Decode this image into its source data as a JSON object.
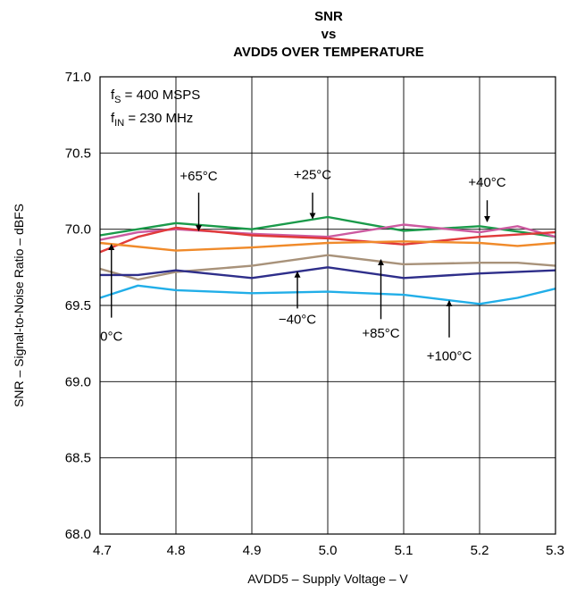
{
  "chart_data": {
    "type": "line",
    "title": [
      "SNR",
      "vs",
      "AVDD5 OVER TEMPERATURE"
    ],
    "xlabel": "AVDD5 – Supply Voltage – V",
    "ylabel": "SNR – Signal-to-Noise Ratio – dBFS",
    "xlim": [
      4.7,
      5.3
    ],
    "ylim": [
      68.0,
      71.0
    ],
    "xticks": [
      "4.7",
      "4.8",
      "4.9",
      "5.0",
      "5.1",
      "5.2",
      "5.3"
    ],
    "yticks": [
      "68.0",
      "68.5",
      "69.0",
      "69.5",
      "70.0",
      "70.5",
      "71.0"
    ],
    "grid": true,
    "conditions": {
      "fs": {
        "sym": "f",
        "sub": "S",
        "text": " = 400 MSPS"
      },
      "fin": {
        "sym": "f",
        "sub": "IN",
        "text": " = 230 MHz"
      }
    },
    "series": [
      {
        "name": "+25°C",
        "color": "#1a9a4a",
        "x": [
          4.7,
          4.8,
          4.9,
          5.0,
          5.1,
          5.2,
          5.3
        ],
        "y": [
          69.96,
          70.04,
          70.0,
          70.08,
          69.99,
          70.02,
          69.95
        ]
      },
      {
        "name": "+40°C",
        "color": "#cc5aa0",
        "x": [
          4.7,
          4.75,
          4.8,
          4.9,
          5.0,
          5.1,
          5.2,
          5.25,
          5.3
        ],
        "y": [
          69.93,
          69.98,
          70.0,
          69.97,
          69.95,
          70.03,
          69.98,
          70.02,
          69.95
        ]
      },
      {
        "name": "+65°C",
        "color": "#e03a3a",
        "x": [
          4.7,
          4.75,
          4.8,
          4.9,
          5.0,
          5.1,
          5.2,
          5.3
        ],
        "y": [
          69.85,
          69.95,
          70.01,
          69.96,
          69.94,
          69.9,
          69.95,
          69.98
        ]
      },
      {
        "name": "0°C",
        "color": "#f08a2a",
        "x": [
          4.7,
          4.8,
          4.9,
          5.0,
          5.1,
          5.2,
          5.25,
          5.3
        ],
        "y": [
          69.91,
          69.86,
          69.88,
          69.91,
          69.92,
          69.91,
          69.89,
          69.91
        ]
      },
      {
        "name": "+85°C",
        "color": "#a8927a",
        "x": [
          4.7,
          4.75,
          4.8,
          4.9,
          5.0,
          5.1,
          5.2,
          5.25,
          5.3
        ],
        "y": [
          69.74,
          69.67,
          69.72,
          69.76,
          69.83,
          69.77,
          69.78,
          69.78,
          69.76
        ]
      },
      {
        "name": "−40°C",
        "color": "#2e2e8a",
        "x": [
          4.7,
          4.75,
          4.8,
          4.9,
          5.0,
          5.1,
          5.2,
          5.3
        ],
        "y": [
          69.7,
          69.7,
          69.73,
          69.68,
          69.75,
          69.68,
          69.71,
          69.73
        ]
      },
      {
        "name": "+100°C",
        "color": "#21aee8",
        "x": [
          4.7,
          4.75,
          4.8,
          4.9,
          5.0,
          5.1,
          5.2,
          5.25,
          5.3
        ],
        "y": [
          69.55,
          69.63,
          69.6,
          69.58,
          69.59,
          69.57,
          69.51,
          69.55,
          69.61
        ]
      }
    ],
    "annotations": [
      {
        "label": "+65°C",
        "series": "+65°C",
        "x": 4.83,
        "label_y": 70.32,
        "arrow_from_y": 70.24,
        "arrow_to_y": 69.99
      },
      {
        "label": "+25°C",
        "series": "+25°C",
        "x": 4.98,
        "label_y": 70.33,
        "arrow_from_y": 70.24,
        "arrow_to_y": 70.07
      },
      {
        "label": "+40°C",
        "series": "+40°C",
        "x": 5.21,
        "label_y": 70.28,
        "arrow_from_y": 70.19,
        "arrow_to_y": 70.05
      },
      {
        "label": "0°C",
        "series": "0°C",
        "x": 4.715,
        "label_y": 69.27,
        "arrow_from_y": 69.42,
        "arrow_to_y": 69.9
      },
      {
        "label": "−40°C",
        "series": "−40°C",
        "x": 4.96,
        "label_y": 69.38,
        "arrow_from_y": 69.48,
        "arrow_to_y": 69.72
      },
      {
        "label": "+85°C",
        "series": "+85°C",
        "x": 5.07,
        "label_y": 69.29,
        "arrow_from_y": 69.41,
        "arrow_to_y": 69.8
      },
      {
        "label": "+100°C",
        "series": "+100°C",
        "x": 5.16,
        "label_y": 69.14,
        "arrow_from_y": 69.29,
        "arrow_to_y": 69.53
      }
    ]
  }
}
